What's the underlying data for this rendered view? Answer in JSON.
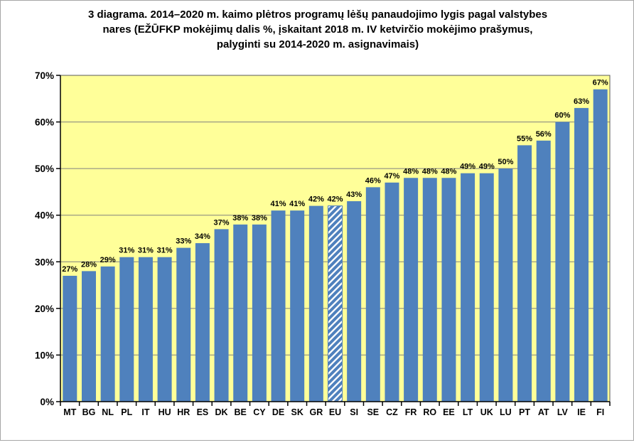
{
  "chart_data": {
    "type": "bar",
    "title": "3 diagrama. 2014–2020 m. kaimo plėtros programų lėšų panaudojimo lygis pagal valstybes nares (EŽŪFKP mokėjimų dalis %, įskaitant 2018 m. IV ketvirčio mokėjimo prašymus, palyginti su 2014-2020 m. asignavimais)",
    "title_lines": [
      "3 diagrama. 2014–2020 m. kaimo plėtros programų lėšų panaudojimo lygis pagal valstybes",
      "nares (EŽŪFKP mokėjimų dalis %, įskaitant 2018 m. IV ketvirčio mokėjimo prašymus,",
      "palyginti su 2014-2020 m. asignavimais)"
    ],
    "categories": [
      "MT",
      "BG",
      "NL",
      "PL",
      "IT",
      "HU",
      "HR",
      "ES",
      "DK",
      "BE",
      "CY",
      "DE",
      "SK",
      "GR",
      "EU",
      "SI",
      "SE",
      "CZ",
      "FR",
      "RO",
      "EE",
      "LT",
      "UK",
      "LU",
      "PT",
      "AT",
      "LV",
      "IE",
      "FI"
    ],
    "values": [
      27,
      28,
      29,
      31,
      31,
      31,
      33,
      34,
      37,
      38,
      38,
      41,
      41,
      42,
      42,
      43,
      46,
      47,
      48,
      48,
      48,
      49,
      49,
      50,
      55,
      56,
      60,
      63,
      67
    ],
    "data_labels": [
      "27%",
      "28%",
      "29%",
      "31%",
      "31%",
      "31%",
      "33%",
      "34%",
      "37%",
      "38%",
      "38%",
      "41%",
      "41%",
      "42%",
      "42%",
      "43%",
      "46%",
      "47%",
      "48%",
      "48%",
      "48%",
      "49%",
      "49%",
      "50%",
      "55%",
      "56%",
      "60%",
      "63%",
      "67%"
    ],
    "highlight": {
      "category": "EU",
      "style": "diagonal-hatch"
    },
    "xlabel": "",
    "ylabel": "",
    "ylim": [
      0,
      70
    ],
    "ytick_step": 10,
    "y_tick_labels": [
      "0%",
      "10%",
      "20%",
      "30%",
      "40%",
      "50%",
      "60%",
      "70%"
    ],
    "grid": true,
    "legend": false,
    "colors": {
      "bar": "#4F81BD",
      "plot_bg": "#FFFF99",
      "grid": "#808080",
      "plot_border": "#595959",
      "axis": "#000000",
      "hatch_fg": "#4F81BD",
      "hatch_bg": "#FFFFFF",
      "text": "#000000",
      "chart_bg": "#FFFFFF"
    }
  }
}
